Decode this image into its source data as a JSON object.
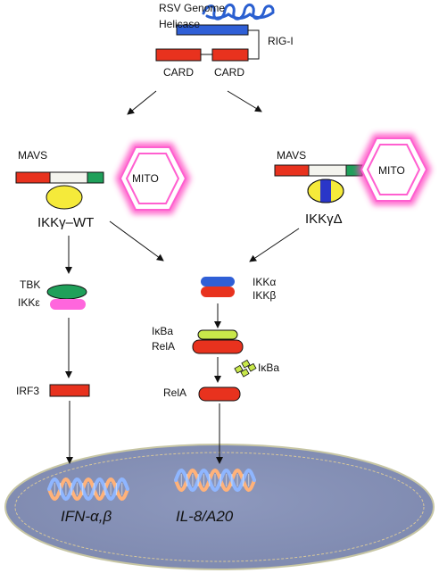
{
  "labels": {
    "rsv_genome": "RSV Genome",
    "helicase": "Helicase",
    "rig_i": "RIG-I",
    "card_left": "CARD",
    "card_right": "CARD",
    "mavs_left": "MAVS",
    "mavs_right": "MAVS",
    "mito_left": "MITO",
    "mito_right": "MITO",
    "ikkg_wt": "IKKγ–WT",
    "ikkg_delta": "IKKγΔ",
    "tbk": "TBK",
    "ikke": "IKKε",
    "ikka": "IKKα",
    "ikkb": "IKKβ",
    "ikba_1": "IκBa",
    "rela_1": "RelA",
    "ikba_free": "IκBa",
    "rela_2": "RelA",
    "irf3": "IRF3",
    "gene_ifn": "IFN-α,β",
    "gene_il8": "IL-8/A20"
  },
  "colors": {
    "red": "#e8321e",
    "blue": "#2f5fd6",
    "green": "#1fa05a",
    "yellow": "#f5ea3a",
    "pink": "#ff5fd0",
    "lime": "#c8e84a",
    "mito_glow": "#ff3fbf",
    "nucleus": "#8590b6",
    "nucleus_edge": "#c9c8a0"
  },
  "icons": [
    "rna-strand-icon",
    "mito-hexagon-icon",
    "dna-helix-icon",
    "ikba-fragment-icon"
  ]
}
